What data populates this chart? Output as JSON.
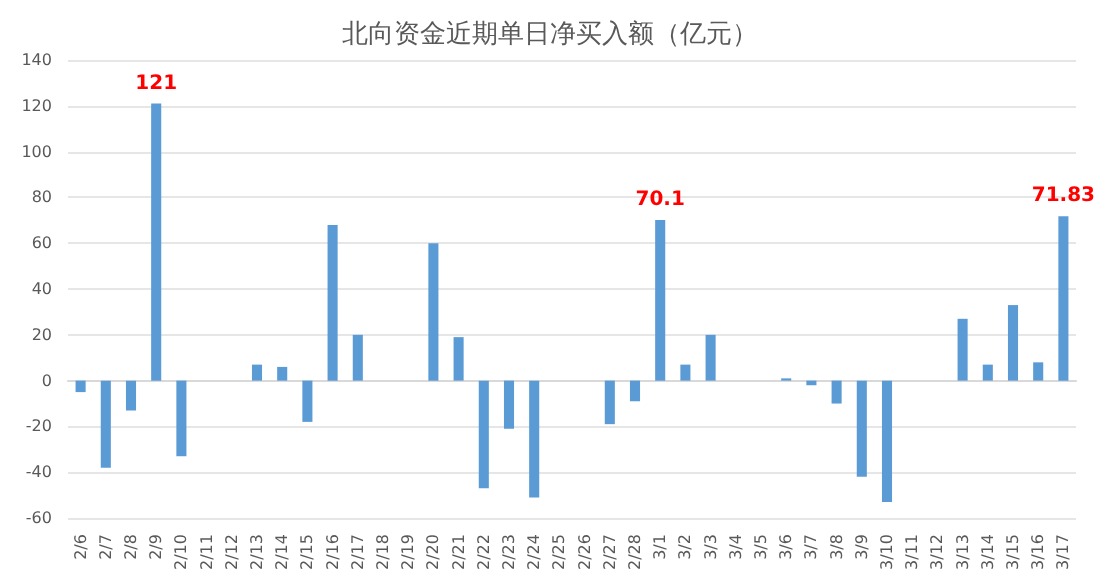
{
  "chart_data": {
    "type": "bar",
    "title": "北向资金近期单日净买入额（亿元）",
    "categories": [
      "2/6",
      "2/7",
      "2/8",
      "2/9",
      "2/10",
      "2/11",
      "2/12",
      "2/13",
      "2/14",
      "2/15",
      "2/16",
      "2/17",
      "2/18",
      "2/19",
      "2/20",
      "2/21",
      "2/22",
      "2/23",
      "2/24",
      "2/25",
      "2/26",
      "2/27",
      "2/28",
      "3/1",
      "3/2",
      "3/3",
      "3/4",
      "3/5",
      "3/6",
      "3/7",
      "3/8",
      "3/9",
      "3/10",
      "3/11",
      "3/12",
      "3/13",
      "3/14",
      "3/15",
      "3/16",
      "3/17"
    ],
    "values": [
      -5,
      -38,
      -13,
      121,
      -33,
      null,
      null,
      7,
      6,
      -18,
      68,
      20,
      null,
      null,
      60,
      19,
      -47,
      -21,
      -51,
      null,
      null,
      -19,
      -9,
      70.1,
      7,
      20,
      null,
      null,
      1,
      -2,
      -10,
      -42,
      -53,
      null,
      null,
      27,
      7,
      33,
      8,
      71.83
    ],
    "value_labels": [
      null,
      null,
      null,
      "121",
      null,
      null,
      null,
      null,
      null,
      null,
      null,
      null,
      null,
      null,
      null,
      null,
      null,
      null,
      null,
      null,
      null,
      null,
      null,
      "70.1",
      null,
      null,
      null,
      null,
      null,
      null,
      null,
      null,
      null,
      null,
      null,
      null,
      null,
      null,
      null,
      "71.83"
    ],
    "color": "#5b9bd5",
    "ylim": [
      -60,
      140
    ],
    "yticks": [
      -60,
      -40,
      -20,
      0,
      20,
      40,
      60,
      80,
      100,
      120,
      140
    ],
    "grid": "y"
  }
}
